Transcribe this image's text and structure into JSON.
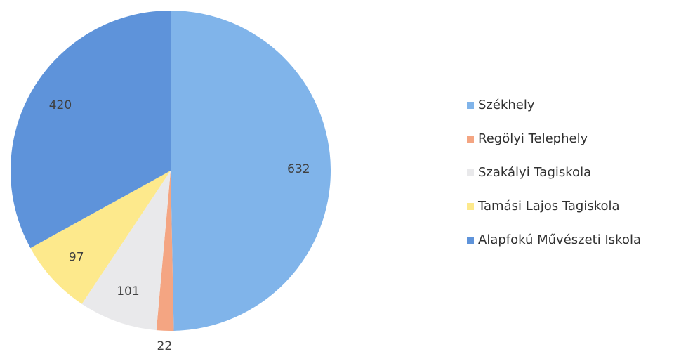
{
  "chart_data": {
    "type": "pie",
    "categories": [
      "Székhely",
      "Regölyi Telephely",
      "Szakályi Tagiskola",
      "Tamási Lajos Tagiskola",
      "Alapfokú Művészeti Iskola"
    ],
    "values": [
      632,
      22,
      101,
      97,
      420
    ],
    "colors": [
      "#80b4ea",
      "#f4a582",
      "#e9e9eb",
      "#fde98c",
      "#5e93da"
    ],
    "legend": "right"
  }
}
